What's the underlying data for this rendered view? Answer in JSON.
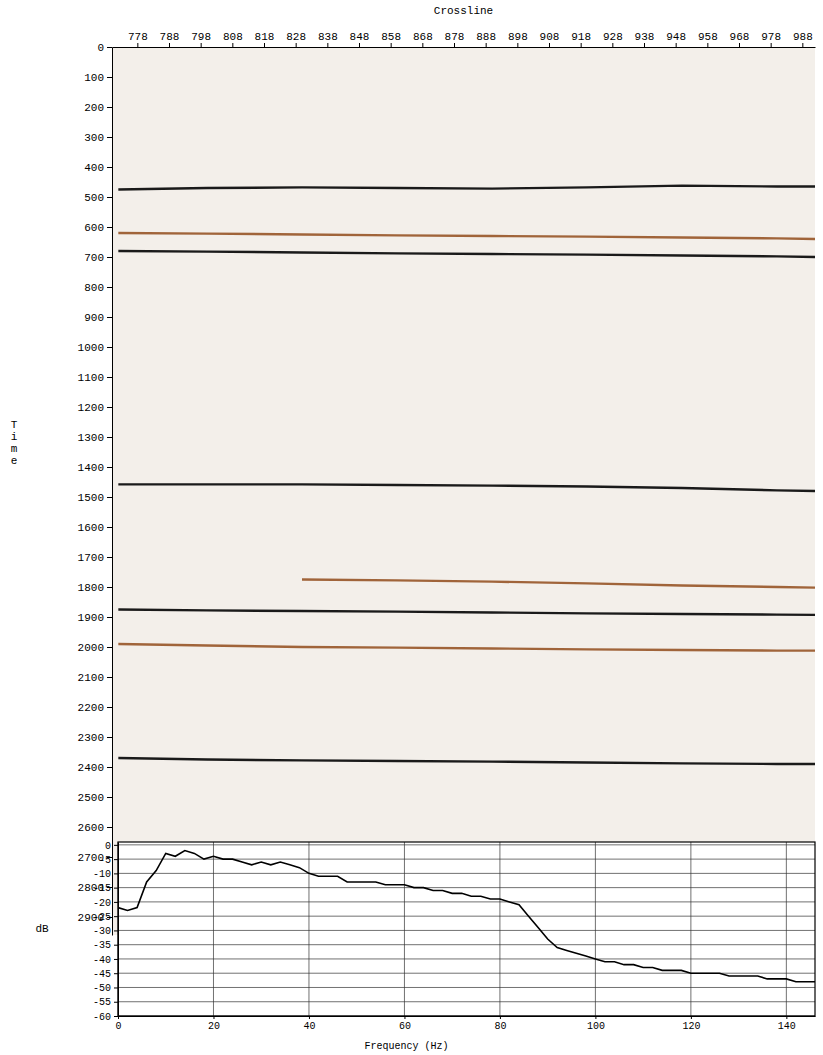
{
  "chart_data": [
    {
      "type": "seismic_section",
      "x_label": "Crossline",
      "y_label": "Time",
      "x": [
        772,
        800,
        830,
        860,
        890,
        920,
        950,
        980,
        992
      ],
      "xlim": [
        770,
        992
      ],
      "xticks": [
        778,
        788,
        798,
        808,
        818,
        828,
        838,
        848,
        858,
        868,
        878,
        888,
        898,
        908,
        918,
        928,
        938,
        948,
        958,
        968,
        978,
        988
      ],
      "ylim": [
        0,
        2960
      ],
      "yticks": [
        0,
        100,
        200,
        300,
        400,
        500,
        600,
        700,
        800,
        900,
        1000,
        1100,
        1200,
        1300,
        1400,
        1500,
        1600,
        1700,
        1800,
        1900,
        2000,
        2100,
        2200,
        2300,
        2400,
        2500,
        2600,
        2700,
        2800,
        2900
      ],
      "grid": false,
      "series": [
        {
          "color": "#1a1a1a",
          "values": [
            475,
            470,
            468,
            470,
            472,
            468,
            462,
            465,
            465
          ]
        },
        {
          "color": "#a0643a",
          "values": [
            620,
            622,
            625,
            628,
            630,
            632,
            635,
            638,
            640
          ]
        },
        {
          "color": "#1a1a1a",
          "values": [
            680,
            682,
            685,
            688,
            690,
            692,
            695,
            698,
            700
          ]
        },
        {
          "color": "#1a1a1a",
          "values": [
            1458,
            1458,
            1458,
            1460,
            1462,
            1465,
            1470,
            1478,
            1480
          ]
        },
        {
          "color": "#a0643a",
          "values": [
            null,
            null,
            1775,
            1778,
            1782,
            1788,
            1795,
            1800,
            1802
          ]
        },
        {
          "color": "#1a1a1a",
          "values": [
            1875,
            1878,
            1880,
            1882,
            1885,
            1888,
            1890,
            1892,
            1893
          ]
        },
        {
          "color": "#a0643a",
          "values": [
            1990,
            1995,
            2000,
            2002,
            2005,
            2008,
            2010,
            2012,
            2012
          ]
        },
        {
          "color": "#1a1a1a",
          "values": [
            2370,
            2375,
            2378,
            2380,
            2382,
            2385,
            2388,
            2390,
            2390
          ]
        }
      ]
    },
    {
      "type": "line",
      "x_label": "Frequency (Hz)",
      "y_label": "dB",
      "x": [
        0,
        2,
        4,
        6,
        8,
        10,
        12,
        14,
        16,
        18,
        20,
        22,
        24,
        26,
        28,
        30,
        32,
        34,
        36,
        38,
        40,
        42,
        44,
        46,
        48,
        50,
        52,
        54,
        56,
        58,
        60,
        62,
        64,
        66,
        68,
        70,
        72,
        74,
        76,
        78,
        80,
        82,
        84,
        86,
        88,
        90,
        92,
        94,
        96,
        98,
        100,
        102,
        104,
        106,
        108,
        110,
        112,
        114,
        116,
        118,
        120,
        122,
        124,
        126,
        128,
        130,
        132,
        134,
        136,
        138,
        140,
        142,
        144,
        146
      ],
      "values": [
        -22,
        -23,
        -22,
        -13,
        -9,
        -3,
        -4,
        -2,
        -3,
        -5,
        -4,
        -5,
        -5,
        -6,
        -7,
        -6,
        -7,
        -6,
        -7,
        -8,
        -10,
        -11,
        -11,
        -11,
        -13,
        -13,
        -13,
        -13,
        -14,
        -14,
        -14,
        -15,
        -15,
        -16,
        -16,
        -17,
        -17,
        -18,
        -18,
        -19,
        -19,
        -20,
        -21,
        -25,
        -29,
        -33,
        -36,
        -37,
        -38,
        -39,
        -40,
        -41,
        -41,
        -42,
        -42,
        -43,
        -43,
        -44,
        -44,
        -44,
        -45,
        -45,
        -45,
        -45,
        -46,
        -46,
        -46,
        -46,
        -47,
        -47,
        -47,
        -48,
        -48,
        -48
      ],
      "color": "#000000",
      "xlim": [
        0,
        146
      ],
      "xticks": [
        0,
        20,
        40,
        60,
        80,
        100,
        120,
        140
      ],
      "ylim": [
        -60,
        1
      ],
      "yticks": [
        0,
        -5,
        -10,
        -15,
        -20,
        -25,
        -30,
        -35,
        -40,
        -45,
        -50,
        -55,
        -60
      ],
      "grid": true
    }
  ]
}
